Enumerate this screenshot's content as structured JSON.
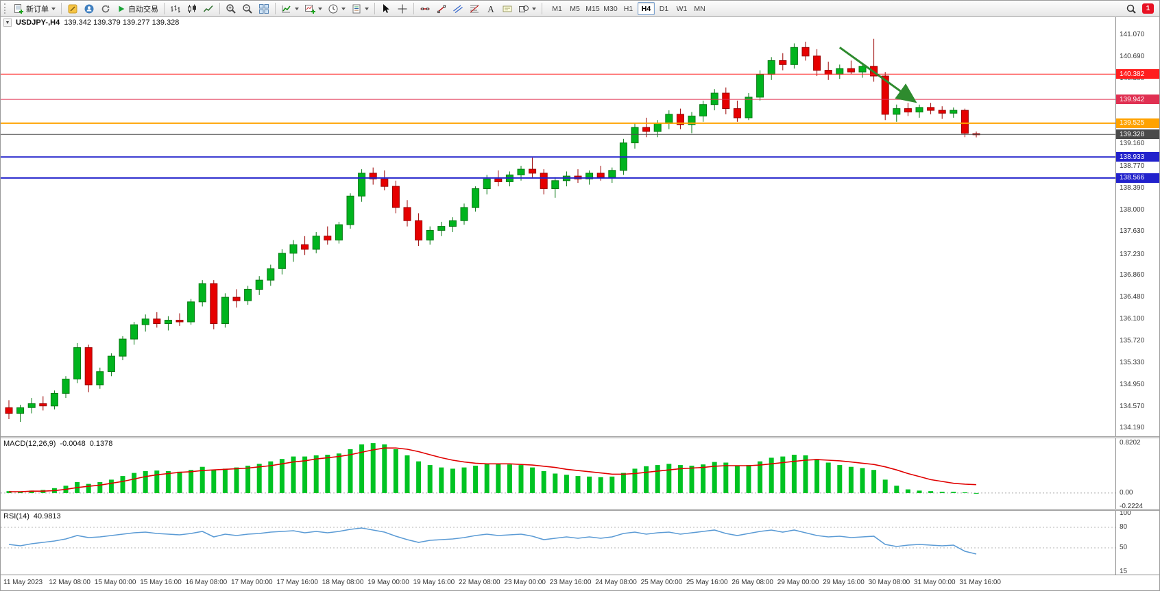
{
  "toolbar": {
    "new_order_label": "新订单",
    "auto_trading_label": "自动交易",
    "timeframes": [
      "M1",
      "M5",
      "M15",
      "M30",
      "H1",
      "H4",
      "D1",
      "W1",
      "MN"
    ],
    "active_timeframe": "H4",
    "notification_badge": "1",
    "accent_color": "#e81123"
  },
  "chart": {
    "header_symbol": "USDJPY-,H4",
    "header_ohlc": "139.342 139.379 139.277 139.328"
  },
  "price_axis_labels": [
    "141.070",
    "140.690",
    "140.300",
    "139.920",
    "139.540",
    "139.160",
    "138.770",
    "138.390",
    "138.000",
    "137.630",
    "137.230",
    "136.860",
    "136.480",
    "136.100",
    "135.720",
    "135.330",
    "134.950",
    "134.570",
    "134.190"
  ],
  "levels": [
    {
      "text": "140.382",
      "price": 140.382,
      "color": "#ff1e1e",
      "width": 1
    },
    {
      "text": "139.942",
      "price": 139.942,
      "color": "#e03052",
      "width": 1
    },
    {
      "text": "139.525",
      "price": 139.525,
      "color": "#ffa200",
      "width": 2
    },
    {
      "text": "139.328",
      "price": 139.328,
      "color": "#4a4a4a",
      "width": 1
    },
    {
      "text": "138.933",
      "price": 138.933,
      "color": "#2222cc",
      "width": 2
    },
    {
      "text": "138.566",
      "price": 138.566,
      "color": "#2222cc",
      "width": 2
    }
  ],
  "chart_data": {
    "type": "candlestick",
    "title": "USDJPY- H4",
    "price_range": [
      134.05,
      141.38
    ],
    "up_color": "#00b41e",
    "down_color": "#e60000",
    "up_border": "#067812",
    "down_border": "#9a0000",
    "x_labels": [
      "11 May 2023",
      "12 May 08:00",
      "15 May 00:00",
      "15 May 16:00",
      "16 May 08:00",
      "17 May 00:00",
      "17 May 16:00",
      "18 May 08:00",
      "19 May 00:00",
      "19 May 16:00",
      "22 May 08:00",
      "23 May 00:00",
      "23 May 16:00",
      "24 May 08:00",
      "25 May 00:00",
      "25 May 16:00",
      "26 May 08:00",
      "29 May 00:00",
      "29 May 16:00",
      "30 May 08:00",
      "31 May 00:00",
      "31 May 16:00"
    ],
    "candles": [
      [
        134.55,
        134.68,
        134.35,
        134.45
      ],
      [
        134.45,
        134.6,
        134.3,
        134.55
      ],
      [
        134.55,
        134.72,
        134.45,
        134.62
      ],
      [
        134.62,
        134.75,
        134.5,
        134.58
      ],
      [
        134.58,
        134.85,
        134.52,
        134.8
      ],
      [
        134.8,
        135.1,
        134.72,
        135.05
      ],
      [
        135.05,
        135.68,
        134.98,
        135.6
      ],
      [
        135.6,
        135.65,
        134.82,
        134.95
      ],
      [
        134.95,
        135.25,
        134.88,
        135.18
      ],
      [
        135.18,
        135.5,
        135.1,
        135.45
      ],
      [
        135.45,
        135.8,
        135.38,
        135.75
      ],
      [
        135.75,
        136.05,
        135.65,
        136.0
      ],
      [
        136.0,
        136.18,
        135.88,
        136.1
      ],
      [
        136.1,
        136.22,
        135.95,
        136.02
      ],
      [
        136.02,
        136.15,
        135.9,
        136.08
      ],
      [
        136.08,
        136.2,
        135.98,
        136.05
      ],
      [
        136.05,
        136.45,
        136.0,
        136.4
      ],
      [
        136.4,
        136.78,
        136.32,
        136.72
      ],
      [
        136.72,
        136.78,
        135.92,
        136.02
      ],
      [
        136.02,
        136.55,
        135.95,
        136.48
      ],
      [
        136.48,
        136.62,
        136.3,
        136.42
      ],
      [
        136.42,
        136.68,
        136.35,
        136.62
      ],
      [
        136.62,
        136.85,
        136.52,
        136.78
      ],
      [
        136.78,
        137.05,
        136.68,
        136.98
      ],
      [
        136.98,
        137.32,
        136.88,
        137.25
      ],
      [
        137.25,
        137.48,
        137.1,
        137.4
      ],
      [
        137.4,
        137.55,
        137.22,
        137.32
      ],
      [
        137.32,
        137.62,
        137.25,
        137.55
      ],
      [
        137.55,
        137.72,
        137.4,
        137.48
      ],
      [
        137.48,
        137.8,
        137.42,
        137.75
      ],
      [
        137.75,
        138.3,
        137.68,
        138.25
      ],
      [
        138.25,
        138.72,
        138.15,
        138.65
      ],
      [
        138.65,
        138.75,
        138.45,
        138.55
      ],
      [
        138.55,
        138.7,
        138.35,
        138.42
      ],
      [
        138.42,
        138.52,
        137.95,
        138.05
      ],
      [
        138.05,
        138.18,
        137.72,
        137.82
      ],
      [
        137.82,
        137.95,
        137.38,
        137.48
      ],
      [
        137.48,
        137.72,
        137.4,
        137.65
      ],
      [
        137.65,
        137.8,
        137.55,
        137.72
      ],
      [
        137.72,
        137.88,
        137.62,
        137.82
      ],
      [
        137.82,
        138.12,
        137.75,
        138.05
      ],
      [
        138.05,
        138.42,
        137.98,
        138.38
      ],
      [
        138.38,
        138.62,
        138.28,
        138.55
      ],
      [
        138.55,
        138.7,
        138.42,
        138.5
      ],
      [
        138.5,
        138.68,
        138.42,
        138.62
      ],
      [
        138.62,
        138.78,
        138.52,
        138.72
      ],
      [
        138.72,
        138.92,
        138.58,
        138.65
      ],
      [
        138.65,
        138.72,
        138.28,
        138.38
      ],
      [
        138.38,
        138.58,
        138.22,
        138.52
      ],
      [
        138.52,
        138.68,
        138.42,
        138.6
      ],
      [
        138.6,
        138.72,
        138.48,
        138.55
      ],
      [
        138.55,
        138.7,
        138.45,
        138.65
      ],
      [
        138.65,
        138.78,
        138.52,
        138.58
      ],
      [
        138.58,
        138.75,
        138.48,
        138.7
      ],
      [
        138.7,
        139.25,
        138.62,
        139.18
      ],
      [
        139.18,
        139.52,
        139.08,
        139.45
      ],
      [
        139.45,
        139.62,
        139.28,
        139.38
      ],
      [
        139.38,
        139.58,
        139.28,
        139.52
      ],
      [
        139.52,
        139.75,
        139.42,
        139.68
      ],
      [
        139.68,
        139.78,
        139.42,
        139.5
      ],
      [
        139.5,
        139.72,
        139.35,
        139.65
      ],
      [
        139.65,
        139.92,
        139.55,
        139.85
      ],
      [
        139.85,
        140.12,
        139.75,
        140.05
      ],
      [
        140.05,
        140.15,
        139.68,
        139.78
      ],
      [
        139.78,
        139.92,
        139.55,
        139.62
      ],
      [
        139.62,
        140.05,
        139.58,
        139.98
      ],
      [
        139.98,
        140.45,
        139.92,
        140.38
      ],
      [
        140.38,
        140.68,
        140.28,
        140.62
      ],
      [
        140.62,
        140.75,
        140.45,
        140.55
      ],
      [
        140.55,
        140.92,
        140.48,
        140.85
      ],
      [
        140.85,
        140.95,
        140.62,
        140.7
      ],
      [
        140.7,
        140.82,
        140.35,
        140.45
      ],
      [
        140.45,
        140.6,
        140.28,
        140.38
      ],
      [
        140.38,
        140.55,
        140.3,
        140.48
      ],
      [
        140.48,
        140.62,
        140.38,
        140.42
      ],
      [
        140.42,
        140.58,
        140.32,
        140.52
      ],
      [
        140.52,
        141.0,
        140.25,
        140.35
      ],
      [
        140.35,
        140.42,
        139.58,
        139.68
      ],
      [
        139.68,
        139.85,
        139.55,
        139.78
      ],
      [
        139.78,
        139.88,
        139.65,
        139.72
      ],
      [
        139.72,
        139.85,
        139.62,
        139.8
      ],
      [
        139.8,
        139.88,
        139.68,
        139.75
      ],
      [
        139.75,
        139.82,
        139.6,
        139.7
      ],
      [
        139.7,
        139.8,
        139.62,
        139.75
      ],
      [
        139.75,
        139.78,
        139.28,
        139.35
      ],
      [
        139.342,
        139.379,
        139.277,
        139.328
      ]
    ],
    "annotations": [
      {
        "type": "arrow",
        "color": "#2e8b2e",
        "from_index": 73,
        "from_price": 140.85,
        "to_index": 79.5,
        "to_price": 139.92,
        "width": 3
      }
    ],
    "indicators": {
      "macd": {
        "label": "MACD(12,26,9)",
        "main_value": "-0.0048",
        "signal_value": "0.1378",
        "range": [
          -0.26,
          0.9
        ],
        "axis_labels": [
          "0.8202",
          "0.00",
          "-0.2224"
        ],
        "hist_color": "#00c322",
        "signal_color": "#e00000",
        "histogram": [
          0.03,
          0.02,
          0.04,
          0.05,
          0.08,
          0.12,
          0.18,
          0.15,
          0.18,
          0.22,
          0.28,
          0.33,
          0.36,
          0.37,
          0.36,
          0.35,
          0.38,
          0.43,
          0.38,
          0.4,
          0.42,
          0.45,
          0.48,
          0.52,
          0.56,
          0.6,
          0.6,
          0.62,
          0.63,
          0.65,
          0.72,
          0.8,
          0.82,
          0.8,
          0.72,
          0.62,
          0.52,
          0.46,
          0.42,
          0.4,
          0.42,
          0.45,
          0.48,
          0.48,
          0.47,
          0.46,
          0.42,
          0.36,
          0.32,
          0.3,
          0.28,
          0.27,
          0.26,
          0.27,
          0.33,
          0.4,
          0.44,
          0.46,
          0.48,
          0.46,
          0.45,
          0.47,
          0.51,
          0.5,
          0.45,
          0.46,
          0.52,
          0.58,
          0.6,
          0.63,
          0.62,
          0.56,
          0.5,
          0.46,
          0.43,
          0.41,
          0.38,
          0.22,
          0.12,
          0.06,
          0.04,
          0.03,
          0.02,
          0.02,
          0.01,
          -0.005
        ],
        "signal": [
          0.02,
          0.02,
          0.03,
          0.03,
          0.04,
          0.06,
          0.09,
          0.11,
          0.13,
          0.16,
          0.19,
          0.23,
          0.27,
          0.3,
          0.32,
          0.34,
          0.35,
          0.37,
          0.38,
          0.39,
          0.4,
          0.41,
          0.43,
          0.45,
          0.48,
          0.51,
          0.53,
          0.56,
          0.58,
          0.6,
          0.63,
          0.67,
          0.71,
          0.74,
          0.74,
          0.72,
          0.68,
          0.63,
          0.58,
          0.54,
          0.51,
          0.49,
          0.48,
          0.48,
          0.48,
          0.47,
          0.46,
          0.44,
          0.42,
          0.39,
          0.37,
          0.35,
          0.33,
          0.31,
          0.31,
          0.32,
          0.34,
          0.36,
          0.38,
          0.4,
          0.41,
          0.42,
          0.44,
          0.45,
          0.45,
          0.45,
          0.46,
          0.48,
          0.5,
          0.52,
          0.54,
          0.55,
          0.54,
          0.53,
          0.51,
          0.49,
          0.47,
          0.43,
          0.38,
          0.32,
          0.27,
          0.22,
          0.19,
          0.16,
          0.145,
          0.138
        ]
      },
      "rsi": {
        "label": "RSI(14)",
        "value": "40.9813",
        "range": [
          15,
          100
        ],
        "axis_labels": [
          "100",
          "80",
          "50",
          "15"
        ],
        "level_lines": [
          80,
          50
        ],
        "color": "#5b9bd5",
        "values": [
          55,
          53,
          56,
          58,
          60,
          63,
          68,
          65,
          66,
          68,
          70,
          72,
          73,
          71,
          70,
          69,
          71,
          74,
          66,
          70,
          68,
          70,
          71,
          73,
          74,
          75,
          72,
          74,
          72,
          74,
          77,
          79,
          76,
          73,
          67,
          62,
          58,
          61,
          62,
          63,
          65,
          68,
          70,
          68,
          69,
          70,
          67,
          62,
          64,
          66,
          64,
          66,
          64,
          66,
          71,
          73,
          70,
          72,
          73,
          70,
          72,
          74,
          76,
          71,
          68,
          71,
          74,
          76,
          73,
          76,
          72,
          68,
          66,
          67,
          65,
          66,
          67,
          55,
          52,
          54,
          55,
          54,
          53,
          54,
          45,
          41
        ]
      }
    }
  }
}
